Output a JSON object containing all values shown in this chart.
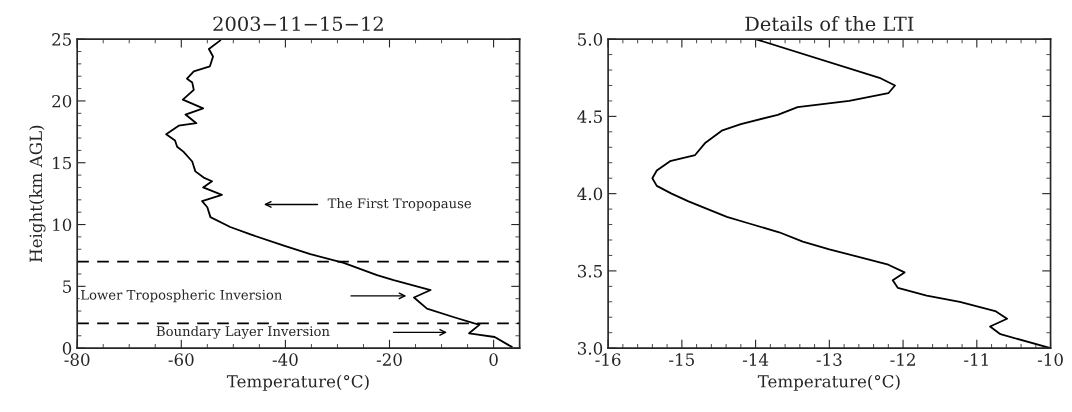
{
  "chart_data": [
    {
      "type": "line",
      "title": "2003−11−15−12",
      "xlabel": "Temperature(°C)",
      "ylabel": "Height(km AGL)",
      "series": [
        {
          "color": "#000000",
          "x": [
            -52.5,
            -54.7,
            -53.9,
            -54.5,
            -57.6,
            -58.9,
            -57.9,
            -57.6,
            -59.7,
            -55.8,
            -59.2,
            -57.1,
            -60.5,
            -62.9,
            -61.2,
            -60.8,
            -59.6,
            -57.9,
            -57.3,
            -55.7,
            -54.1,
            -55.8,
            -52.2,
            -56.0,
            -55.0,
            -54.4,
            -50.6,
            -46.7,
            -40.3,
            -35.2,
            -28.8,
            -22.4,
            -19.2,
            -12.1,
            -15.3,
            -12.8,
            -7.6,
            -3.7,
            -2.7,
            -4.7,
            -3.0,
            0.2,
            3.5
          ],
          "values": [
            24.9,
            24.2,
            23.6,
            22.8,
            22.4,
            21.8,
            21.5,
            20.9,
            20.1,
            19.4,
            18.9,
            18.2,
            18.0,
            17.3,
            16.8,
            16.3,
            15.9,
            15.1,
            14.3,
            13.8,
            13.5,
            13.0,
            12.4,
            11.9,
            11.4,
            10.6,
            9.8,
            9.2,
            8.3,
            7.6,
            6.9,
            5.9,
            5.5,
            4.7,
            4.1,
            3.2,
            2.5,
            2.0,
            1.9,
            1.2,
            1.1,
            0.9,
            0.1
          ]
        }
      ],
      "xlim": [
        -80,
        5
      ],
      "ylim": [
        0,
        25
      ],
      "xticks": [
        -80,
        -60,
        -40,
        -20,
        0
      ],
      "yticks": [
        0,
        5,
        10,
        15,
        20,
        25
      ],
      "ref_lines": [
        {
          "axis": "y",
          "value": 7,
          "line_style": "dashed",
          "color": "#000000"
        },
        {
          "axis": "y",
          "value": 2,
          "line_style": "dashed",
          "color": "#000000"
        }
      ],
      "annotations": [
        "The First Tropopause",
        "Lower Tropospheric Inversion",
        "Boundary Layer Inversion"
      ],
      "grid": false,
      "legend": false,
      "line_style": "solid",
      "marker": "none"
    },
    {
      "type": "line",
      "title": "Details of the LTI",
      "xlabel": "Temperature(°C)",
      "series": [
        {
          "color": "#000000",
          "x": [
            -14.0,
            -12.32,
            -12.11,
            -12.2,
            -12.73,
            -13.43,
            -13.7,
            -14.2,
            -14.45,
            -14.68,
            -14.82,
            -15.16,
            -15.34,
            -15.4,
            -15.34,
            -15.14,
            -14.91,
            -14.39,
            -14.11,
            -13.68,
            -13.36,
            -13.0,
            -12.2,
            -11.98,
            -12.14,
            -12.07,
            -11.68,
            -11.23,
            -10.75,
            -10.59,
            -10.82,
            -10.68,
            -10.0
          ],
          "values": [
            5.0,
            4.75,
            4.7,
            4.65,
            4.6,
            4.56,
            4.51,
            4.45,
            4.41,
            4.33,
            4.25,
            4.21,
            4.15,
            4.1,
            4.05,
            4.0,
            3.95,
            3.85,
            3.81,
            3.75,
            3.69,
            3.64,
            3.54,
            3.49,
            3.44,
            3.39,
            3.34,
            3.3,
            3.24,
            3.19,
            3.14,
            3.09,
            3.0
          ]
        }
      ],
      "xlim": [
        -16,
        -10
      ],
      "ylim": [
        3,
        5
      ],
      "xticks": [
        -16,
        -15,
        -14,
        -13,
        -12,
        -11,
        -10
      ],
      "yticks": [
        {
          "value": 3,
          "label": "3.0"
        },
        {
          "value": 3.5,
          "label": "3.5"
        },
        {
          "value": 4,
          "label": "4.0"
        },
        {
          "value": 4.5,
          "label": "4.5"
        },
        {
          "value": 5,
          "label": "5.0"
        }
      ],
      "grid": false,
      "legend": false,
      "line_style": "solid",
      "marker": "none"
    }
  ]
}
